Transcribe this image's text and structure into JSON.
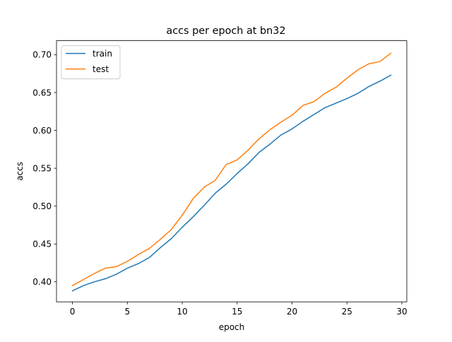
{
  "chart_data": {
    "type": "line",
    "title": "accs per epoch at bn32",
    "xlabel": "epoch",
    "ylabel": "accs",
    "xlim": [
      -1.45,
      30.45
    ],
    "ylim": [
      0.3735,
      0.7185
    ],
    "xticks": [
      0,
      5,
      10,
      15,
      20,
      25,
      30
    ],
    "xtick_labels": [
      "0",
      "5",
      "10",
      "15",
      "20",
      "25",
      "30"
    ],
    "yticks": [
      0.4,
      0.45,
      0.5,
      0.55,
      0.6,
      0.65,
      0.7
    ],
    "ytick_labels": [
      "0.40",
      "0.45",
      "0.50",
      "0.55",
      "0.60",
      "0.65",
      "0.70"
    ],
    "grid": false,
    "legend_position": "top-left",
    "x": [
      0,
      1,
      2,
      3,
      4,
      5,
      6,
      7,
      8,
      9,
      10,
      11,
      12,
      13,
      14,
      15,
      16,
      17,
      18,
      19,
      20,
      21,
      22,
      23,
      24,
      25,
      26,
      27,
      28,
      29
    ],
    "series": [
      {
        "name": "train",
        "color": "#1f77b4",
        "values": [
          0.388,
          0.395,
          0.4,
          0.404,
          0.41,
          0.418,
          0.424,
          0.432,
          0.445,
          0.457,
          0.472,
          0.486,
          0.501,
          0.517,
          0.529,
          0.543,
          0.556,
          0.571,
          0.582,
          0.594,
          0.602,
          0.612,
          0.621,
          0.63,
          0.636,
          0.642,
          0.649,
          0.658,
          0.665,
          0.673
        ]
      },
      {
        "name": "test",
        "color": "#ff7f0e",
        "values": [
          0.395,
          0.403,
          0.411,
          0.418,
          0.42,
          0.427,
          0.436,
          0.444,
          0.456,
          0.469,
          0.488,
          0.51,
          0.525,
          0.534,
          0.555,
          0.561,
          0.574,
          0.589,
          0.601,
          0.611,
          0.62,
          0.633,
          0.638,
          0.649,
          0.657,
          0.669,
          0.68,
          0.688,
          0.691,
          0.702
        ]
      }
    ]
  }
}
